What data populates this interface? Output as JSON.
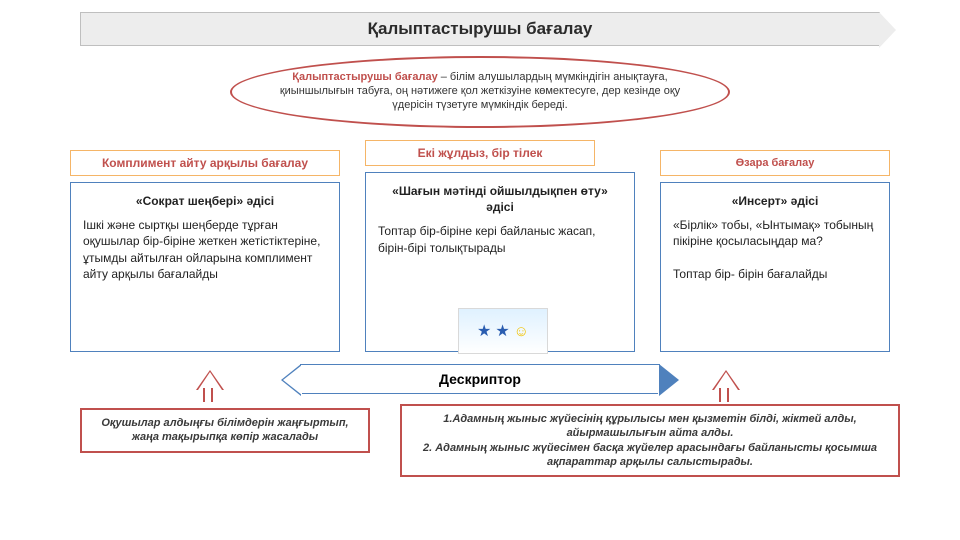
{
  "colors": {
    "accent_red": "#c0504d",
    "accent_blue": "#4f81bd",
    "accent_orange": "#f5b567",
    "banner_bg": "#ededed",
    "banner_border": "#bfbfbf",
    "page_bg": "#ffffff"
  },
  "title": "Қалыптастырушы       бағалау",
  "ellipse": {
    "bold": "Қалыптастырушы бағалау",
    "rest": " – білім алушылардың мүмкіндігін анықтауға, қиыншылығын табуға, оң нәтижеге қол жеткізуіне көмектесуге, дер кезінде оқу үдерісін түзетуге мүмкіндік береді."
  },
  "columns": [
    {
      "label": "Комплимент айту арқылы бағалау",
      "card_title": "«Сократ шеңбері» әдісі",
      "card_body": "Ішкі және сыртқы шеңберде тұрған оқушылар бір-біріне жеткен жетістіктеріне, ұтымды айтылған ойларына  комплимент айту арқылы бағалайды"
    },
    {
      "label": "Екі жұлдыз, бір тілек",
      "card_title": "«Шағын мәтінді ойшылдықпен өту» әдісі",
      "card_body": "Топтар бір-біріне кері байланыс жасап, бірін-бірі толықтырады"
    },
    {
      "label": "Өзара бағалау",
      "card_title": "«Инсерт» әдісі",
      "card_body_1": "«Бірлік» тобы, «Ынтымақ» тобының   пікіріне қосыласыңдар ма?",
      "card_body_2": "Топтар бір- бірін бағалайды"
    }
  ],
  "stars_caption": "Екі жұлдыз, бір тілек",
  "descriptor": "Дескриптор",
  "foot_left": "Оқушылар алдыңғы білімдерін жаңғыртып, жаңа тақырыпқа көпір жасалады",
  "foot_right_1": "1.Адамның жыныс жүйесінің құрылысы мен қызметін білді, жіктей алды, айырмашылығын айта алды.",
  "foot_right_2": "2. Адамның жыныс жүйесімен басқа жүйелер арасындағы байланысты қосымша ақпараттар арқылы салыстырады."
}
